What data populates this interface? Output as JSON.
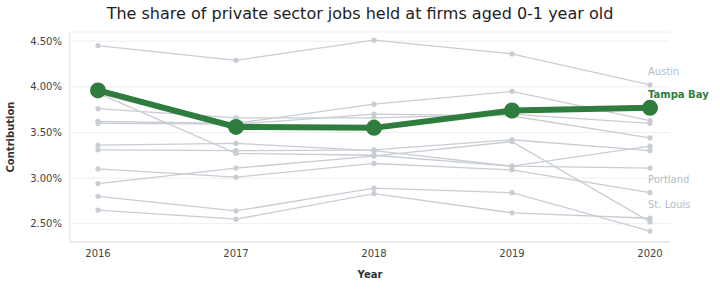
{
  "chart_data": {
    "type": "line",
    "title": "The share of private sector jobs held at firms aged 0-1 year old",
    "x_label": "Year",
    "y_label": "Contribution",
    "categories": [
      "2016",
      "2017",
      "2018",
      "2019",
      "2020"
    ],
    "series": [
      {
        "name": "Austin",
        "color": "#c8cdd4",
        "marker": "circle",
        "line_style": "solid",
        "values": [
          4.45,
          4.29,
          4.51,
          4.36,
          4.02
        ]
      },
      {
        "color": "#c8cdd4",
        "marker": "circle",
        "line_style": "solid",
        "values": [
          3.93,
          3.27,
          3.25,
          3.13,
          3.35
        ]
      },
      {
        "color": "#c8cdd4",
        "marker": "circle",
        "line_style": "solid",
        "values": [
          3.76,
          3.66,
          3.66,
          3.7,
          3.6
        ]
      },
      {
        "color": "#c8cdd4",
        "marker": "circle",
        "line_style": "solid",
        "values": [
          3.62,
          3.6,
          3.81,
          3.95,
          3.63
        ]
      },
      {
        "color": "#c8cdd4",
        "marker": "circle",
        "line_style": "solid",
        "values": [
          3.6,
          3.59,
          3.7,
          3.68,
          3.44
        ]
      },
      {
        "color": "#c8cdd4",
        "marker": "circle",
        "line_style": "solid",
        "values": [
          3.36,
          3.38,
          3.3,
          3.13,
          3.11
        ]
      },
      {
        "color": "#c8cdd4",
        "marker": "circle",
        "line_style": "solid",
        "values": [
          3.31,
          3.3,
          3.31,
          3.42,
          3.3
        ]
      },
      {
        "name": "Portland",
        "color": "#c8cdd4",
        "marker": "circle",
        "line_style": "solid",
        "values": [
          3.1,
          3.01,
          3.16,
          3.09,
          2.84
        ]
      },
      {
        "color": "#c8cdd4",
        "marker": "circle",
        "line_style": "solid",
        "values": [
          2.94,
          3.11,
          3.24,
          3.4,
          2.52
        ]
      },
      {
        "color": "#c8cdd4",
        "marker": "circle",
        "line_style": "solid",
        "values": [
          2.8,
          2.64,
          2.89,
          2.84,
          2.42
        ]
      },
      {
        "name": "St. Louis",
        "color": "#c8cdd4",
        "marker": "circle",
        "line_style": "solid",
        "values": [
          2.65,
          2.55,
          2.83,
          2.62,
          2.56
        ]
      },
      {
        "name": "Tampa Bay",
        "color": "#2e7d3e",
        "marker": "circle",
        "line_style": "thick",
        "values": [
          3.96,
          3.56,
          3.55,
          3.74,
          3.77
        ]
      }
    ],
    "ylim": [
      2.3,
      4.6
    ],
    "yticks": [
      {
        "value": 2.5,
        "label": "2.50%"
      },
      {
        "value": 3.0,
        "label": "3.00%"
      },
      {
        "value": 3.5,
        "label": "3.50%"
      },
      {
        "value": 4.0,
        "label": "4.00%"
      },
      {
        "value": 4.5,
        "label": "4.50%"
      }
    ],
    "grid": true
  }
}
